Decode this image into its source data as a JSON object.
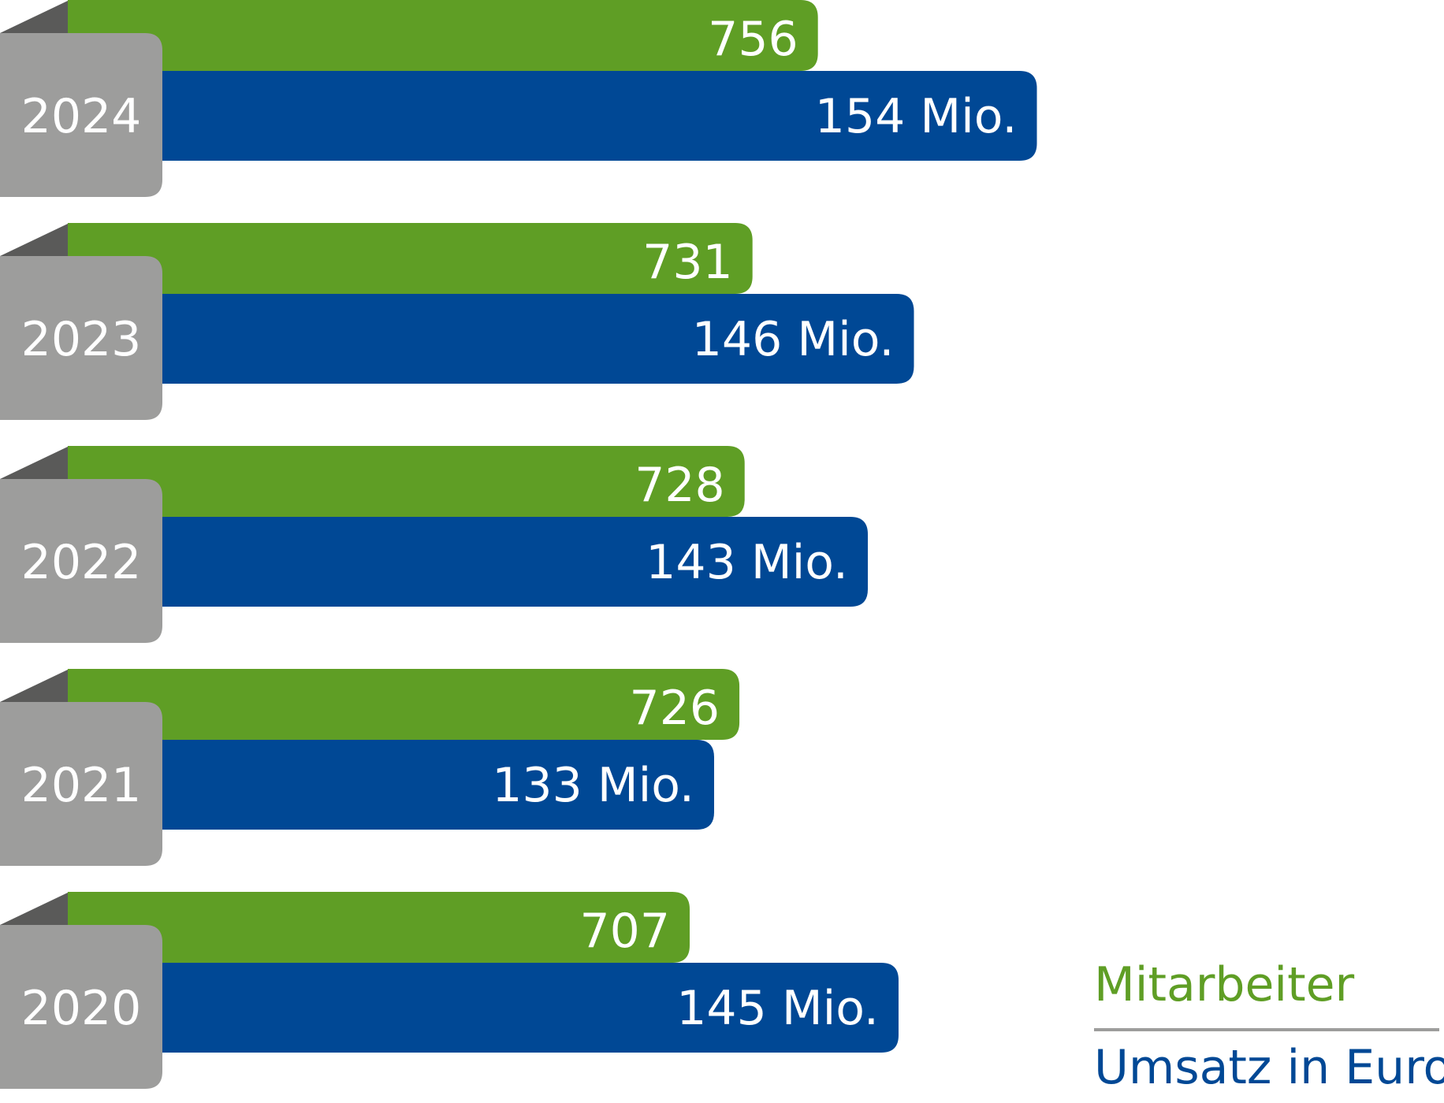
{
  "chart_data": {
    "type": "bar",
    "orientation": "horizontal",
    "categories": [
      "2024",
      "2023",
      "2022",
      "2021",
      "2020"
    ],
    "series": [
      {
        "name": "Mitarbeiter",
        "values": [
          756,
          731,
          728,
          726,
          707
        ],
        "labels": [
          "756",
          "731",
          "728",
          "726",
          "707"
        ]
      },
      {
        "name": "Umsatz in Euro",
        "values": [
          154,
          146,
          143,
          133,
          145
        ],
        "labels": [
          "154 Mio.",
          "146 Mio.",
          "143 Mio.",
          "133 Mio.",
          "145 Mio."
        ]
      }
    ],
    "legend": {
      "position": "bottom-right"
    },
    "grid": false
  },
  "colors": {
    "staff": "#5f9e25",
    "revenue": "#004895",
    "year_tab": "#9d9d9c",
    "tab_fold": "#5a5a59",
    "divider": "#9d9d9c"
  }
}
